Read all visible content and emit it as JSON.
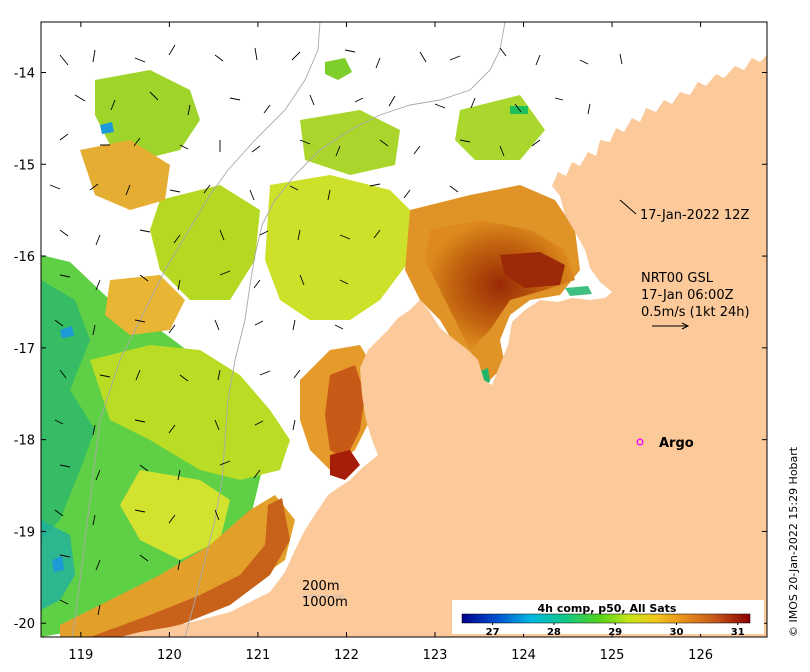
{
  "map": {
    "x_ticks": [
      "119",
      "120",
      "121",
      "122",
      "123",
      "124",
      "125",
      "126"
    ],
    "y_ticks": [
      "-14",
      "-15",
      "-16",
      "-17",
      "-18",
      "-19",
      "-20"
    ],
    "lon_range": [
      118.55,
      126.75
    ],
    "lat_range": [
      -20.15,
      -13.45
    ]
  },
  "annotations": {
    "swath_time": "17-Jan-2022 12Z",
    "current_source": "NRT00 GSL",
    "current_time": "17-Jan 06:00Z",
    "current_scale": "0.5m/s (1kt 24h)",
    "argo_label": "Argo",
    "depth_200": "200m",
    "depth_1000": "1000m",
    "credit": "© IMOS 20-Jan-2022 15:29 Hobart"
  },
  "colorbar": {
    "title": "4h comp, p50, All Sats",
    "ticks": [
      "27",
      "28",
      "29",
      "30",
      "31"
    ],
    "range": [
      26.5,
      31.2
    ]
  },
  "colors": {
    "land": "#fcc99b",
    "argo_marker": "#ff00ff",
    "contour": "#a9a9a9",
    "warm": "#b03a0c",
    "cool": "#3fbf7f"
  }
}
